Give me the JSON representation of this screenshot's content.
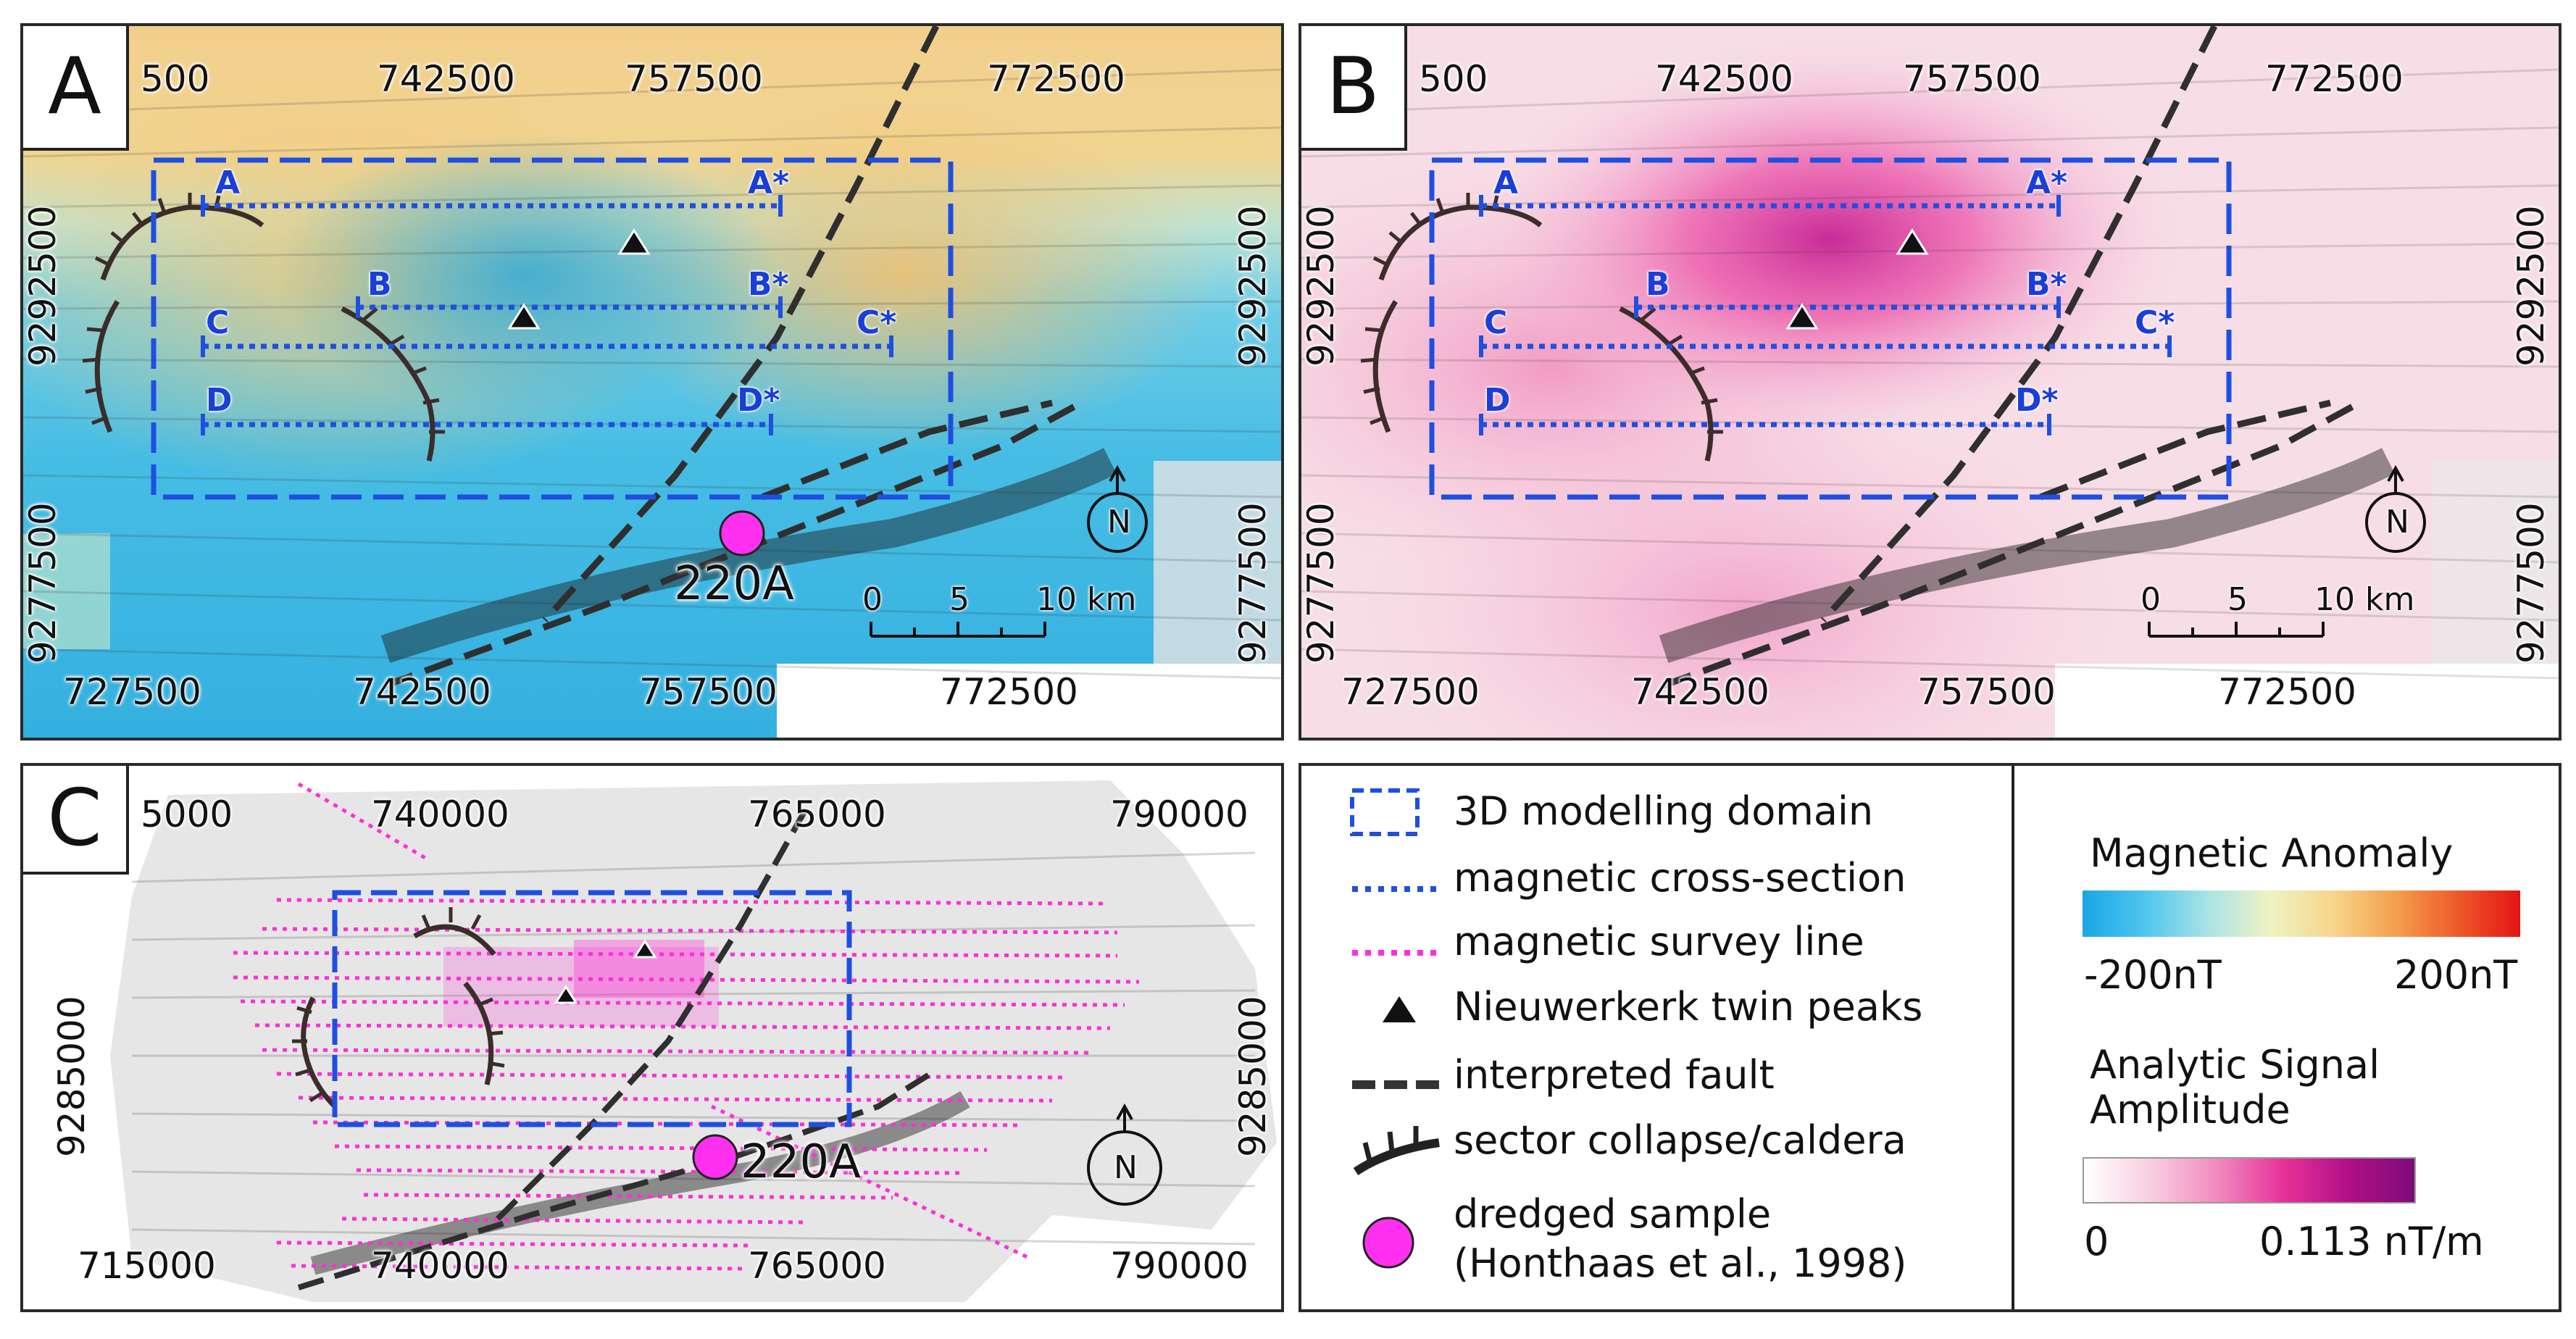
{
  "panels": {
    "A": {
      "letter": "A",
      "top_ticks": [
        "500",
        "742500",
        "757500",
        "772500"
      ],
      "bottom_ticks": [
        "727500",
        "742500",
        "757500",
        "772500"
      ],
      "left_ticks": [
        "9292500",
        "9277500"
      ],
      "right_ticks": [
        "9292500",
        "9277500"
      ],
      "sections": [
        {
          "start": "A",
          "end": "A*"
        },
        {
          "start": "B",
          "end": "B*"
        },
        {
          "start": "C",
          "end": "C*"
        },
        {
          "start": "D",
          "end": "D*"
        }
      ],
      "sample_label": "220A",
      "scale_labels": [
        "0",
        "5",
        "10 km"
      ],
      "north": "N"
    },
    "B": {
      "letter": "B",
      "top_ticks": [
        "500",
        "742500",
        "757500",
        "772500"
      ],
      "bottom_ticks": [
        "727500",
        "742500",
        "757500",
        "772500"
      ],
      "left_ticks": [
        "9292500",
        "9277500"
      ],
      "right_ticks": [
        "9292500",
        "9277500"
      ],
      "sections": [
        {
          "start": "A",
          "end": "A*"
        },
        {
          "start": "B",
          "end": "B*"
        },
        {
          "start": "C",
          "end": "C*"
        },
        {
          "start": "D",
          "end": "D*"
        }
      ],
      "scale_labels": [
        "0",
        "5",
        "10 km"
      ],
      "north": "N"
    },
    "C": {
      "letter": "C",
      "top_ticks": [
        "5000",
        "740000",
        "765000",
        "790000"
      ],
      "bottom_ticks": [
        "715000",
        "740000",
        "765000",
        "790000"
      ],
      "left_ticks": [
        "9285000"
      ],
      "right_ticks": [
        "9285000"
      ],
      "sample_label": "220A",
      "north": "N"
    }
  },
  "legend": {
    "items": [
      {
        "label": "3D modelling domain",
        "icon": "dashed-rectangle-icon",
        "color": "#1f4fe0"
      },
      {
        "label": "magnetic cross-section",
        "icon": "dotted-line-icon",
        "color": "#1f4fe0"
      },
      {
        "label": "magnetic survey line",
        "icon": "dotted-line-icon",
        "color": "#ff2fd6"
      },
      {
        "label": "Nieuwerkerk twin peaks",
        "icon": "triangle-icon",
        "color": "#111111"
      },
      {
        "label": "interpreted fault",
        "icon": "dashed-line-icon",
        "color": "#333333"
      },
      {
        "label": "sector collapse/caldera",
        "icon": "hachure-line-icon",
        "color": "#222222"
      },
      {
        "label": "dredged sample",
        "label2": "(Honthaas et al., 1998)",
        "icon": "circle-icon",
        "color": "#ff30f0"
      }
    ]
  },
  "colorbars": {
    "magnetic": {
      "title": "Magnetic Anomaly",
      "min": "-200nT",
      "max": "200nT",
      "colors": [
        "#1aa6e6",
        "#4fc6ee",
        "#a9e3e6",
        "#eef3c2",
        "#f6d68c",
        "#f4a04d",
        "#ee5a2a",
        "#e31414"
      ]
    },
    "asa": {
      "title_line1": "Analytic Signal",
      "title_line2": "Amplitude",
      "min": "0",
      "max": "0.113 nT/m",
      "colors": [
        "#ffffff",
        "#f8cfe0",
        "#f18cbf",
        "#e8339a",
        "#b10f86",
        "#7e0c7a"
      ]
    }
  }
}
